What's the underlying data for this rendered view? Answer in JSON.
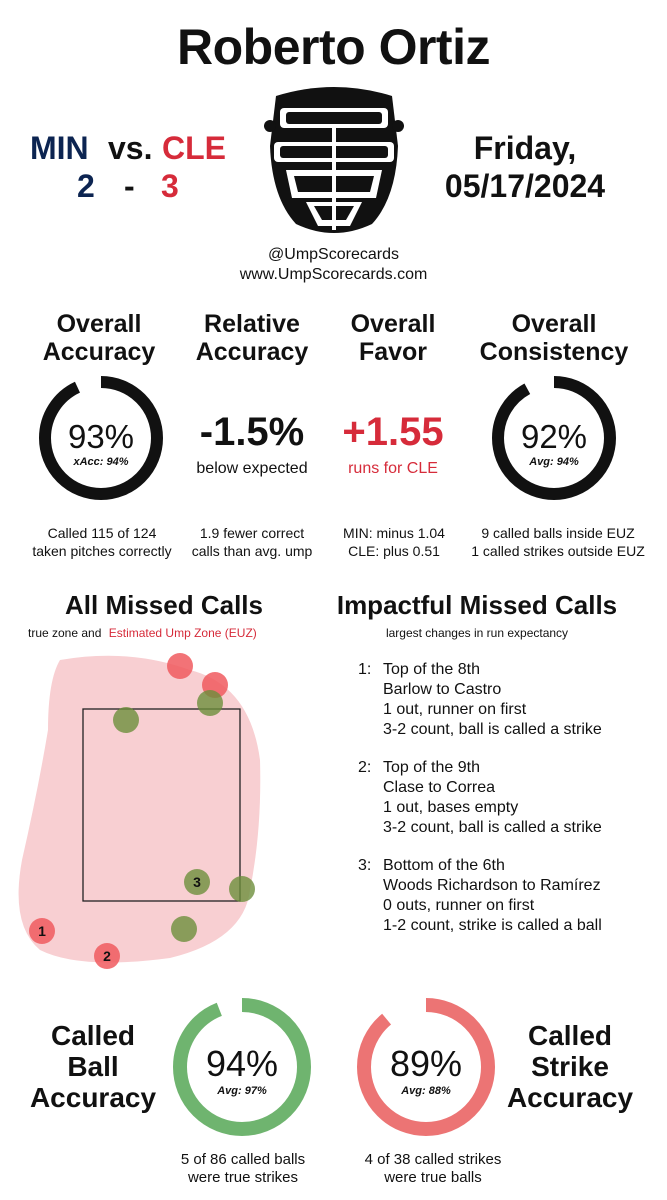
{
  "umpire_name": "Roberto Ortiz",
  "game": {
    "away_team": "MIN",
    "vs": "vs.",
    "home_team": "CLE",
    "away_score": "2",
    "dash": "-",
    "home_score": "3",
    "day": "Friday,",
    "date": "05/17/2024"
  },
  "social": {
    "handle": "@UmpScorecards",
    "website": "www.UmpScorecards.com"
  },
  "metrics": {
    "accuracy": {
      "head1": "Overall",
      "head2": "Accuracy",
      "value": "93%",
      "sub": "xAcc: 94%",
      "fraction": 0.93,
      "note1": "Called 115 of 124",
      "note2": "taken pitches correctly"
    },
    "relative": {
      "head1": "Relative",
      "head2": "Accuracy",
      "value": "-1.5%",
      "sub": "below expected",
      "note1": "1.9 fewer correct",
      "note2": "calls than avg. ump"
    },
    "favor": {
      "head1": "Overall",
      "head2": "Favor",
      "value": "+1.55",
      "sub": "runs for CLE",
      "note1": "MIN: minus 1.04",
      "note2": "CLE: plus 0.51"
    },
    "consistency": {
      "head1": "Overall",
      "head2": "Consistency",
      "value": "92%",
      "sub": "Avg: 94%",
      "fraction": 0.92,
      "note1": "9 called balls inside EUZ",
      "note2": "1 called strikes outside EUZ"
    }
  },
  "missed_calls": {
    "title": "All Missed Calls",
    "legend_prefix": "true zone and",
    "legend_euz": "Estimated Ump Zone (EUZ)",
    "markers": [
      {
        "label": "",
        "kind": "red"
      },
      {
        "label": "",
        "kind": "red"
      },
      {
        "label": "",
        "kind": "green"
      },
      {
        "label": "",
        "kind": "green"
      },
      {
        "label": "3",
        "kind": "green"
      },
      {
        "label": "",
        "kind": "green"
      },
      {
        "label": "",
        "kind": "green"
      },
      {
        "label": "1",
        "kind": "red"
      },
      {
        "label": "2",
        "kind": "red"
      }
    ]
  },
  "impactful": {
    "title": "Impactful Missed Calls",
    "subtitle": "largest changes in run expectancy",
    "items": [
      {
        "num": "1:",
        "lines": [
          "Top of the 8th",
          "Barlow to Castro",
          "1 out, runner on first",
          "3-2 count, ball is called a strike"
        ]
      },
      {
        "num": "2:",
        "lines": [
          "Top of the 9th",
          "Clase to Correa",
          "1 out, bases empty",
          "3-2 count, ball is called a strike"
        ]
      },
      {
        "num": "3:",
        "lines": [
          "Bottom of the 6th",
          "Woods Richardson to Ramírez",
          "0 outs, runner on first",
          "1-2 count, strike is called a ball"
        ]
      }
    ]
  },
  "called_ball": {
    "head1": "Called",
    "head2": "Ball",
    "head3": "Accuracy",
    "value": "94%",
    "sub": "Avg: 97%",
    "fraction": 0.94,
    "note1": "5 of 86 called balls",
    "note2": "were true strikes",
    "color": "#6fb46f"
  },
  "called_strike": {
    "head1": "Called",
    "head2": "Strike",
    "head3": "Accuracy",
    "value": "89%",
    "sub": "Avg: 88%",
    "fraction": 0.89,
    "note1": "4 of 38 called strikes",
    "note2": "were true balls",
    "color": "#ec7474"
  },
  "colors": {
    "navy": "#0c2451",
    "red": "#d62b3a",
    "euz_fill": "#f8cfd2"
  }
}
